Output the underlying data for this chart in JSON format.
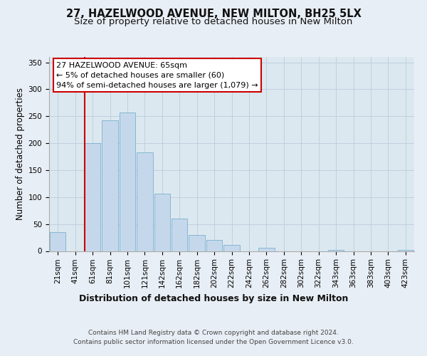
{
  "title": "27, HAZELWOOD AVENUE, NEW MILTON, BH25 5LX",
  "subtitle": "Size of property relative to detached houses in New Milton",
  "xlabel": "Distribution of detached houses by size in New Milton",
  "ylabel": "Number of detached properties",
  "bar_labels": [
    "21sqm",
    "41sqm",
    "61sqm",
    "81sqm",
    "101sqm",
    "121sqm",
    "142sqm",
    "162sqm",
    "182sqm",
    "202sqm",
    "222sqm",
    "242sqm",
    "262sqm",
    "282sqm",
    "302sqm",
    "322sqm",
    "343sqm",
    "363sqm",
    "383sqm",
    "403sqm",
    "423sqm"
  ],
  "bar_values": [
    35,
    0,
    200,
    242,
    257,
    183,
    106,
    60,
    30,
    21,
    11,
    0,
    6,
    0,
    0,
    0,
    2,
    0,
    0,
    0,
    2
  ],
  "bar_color": "#c5d8eb",
  "bar_edge_color": "#7ab0d0",
  "vline_x_idx": 2,
  "vline_color": "#cc0000",
  "annotation_text": "27 HAZELWOOD AVENUE: 65sqm\n← 5% of detached houses are smaller (60)\n94% of semi-detached houses are larger (1,079) →",
  "annotation_box_color": "#ffffff",
  "annotation_box_edge": "#cc0000",
  "ylim": [
    0,
    360
  ],
  "yticks": [
    0,
    50,
    100,
    150,
    200,
    250,
    300,
    350
  ],
  "footer_line1": "Contains HM Land Registry data © Crown copyright and database right 2024.",
  "footer_line2": "Contains public sector information licensed under the Open Government Licence v3.0.",
  "bg_color": "#e8eef5",
  "plot_bg_color": "#dce8f0",
  "grid_color": "#c0d0de",
  "title_fontsize": 10.5,
  "subtitle_fontsize": 9.5,
  "xlabel_fontsize": 9,
  "ylabel_fontsize": 8.5,
  "tick_fontsize": 7.5,
  "annotation_fontsize": 8,
  "footer_fontsize": 6.5
}
